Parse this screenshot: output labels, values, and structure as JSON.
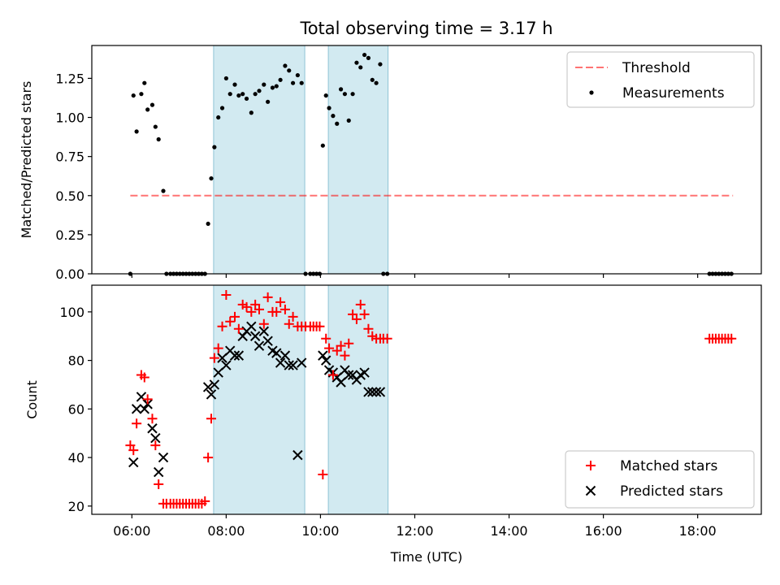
{
  "title": "Total observing time = 3.17 h",
  "colors": {
    "observing_span": "#add8e6",
    "threshold": "#ff0000",
    "measurements": "#000000",
    "matched": "#ff0000",
    "predicted": "#000000"
  },
  "chart_data": [
    {
      "type": "scatter",
      "panel": "top",
      "ylabel": "Matched/Predicted stars",
      "ylim": [
        0,
        1.46
      ],
      "yticks": [
        "0.00",
        "0.25",
        "0.50",
        "0.75",
        "1.00",
        "1.25"
      ],
      "xlim": [
        "05:09",
        "19:21"
      ],
      "legend": [
        "Threshold",
        "Measurements"
      ],
      "legend_position": "top-right",
      "observing_spans": [
        [
          "07:44",
          "09:40"
        ],
        [
          "10:10",
          "11:26"
        ]
      ],
      "threshold": {
        "name": "Threshold",
        "y": 0.5,
        "x": [
          "05:58",
          "18:45"
        ],
        "style": "dashed"
      },
      "series": [
        {
          "name": "Measurements",
          "x": [
            "05:58",
            "06:02",
            "06:06",
            "06:12",
            "06:16",
            "06:20",
            "06:26",
            "06:30",
            "06:34",
            "06:40",
            "06:44",
            "06:49",
            "06:53",
            "06:57",
            "07:01",
            "07:05",
            "07:09",
            "07:13",
            "07:17",
            "07:21",
            "07:25",
            "07:29",
            "07:33",
            "07:37",
            "07:41",
            "07:45",
            "07:50",
            "07:55",
            "08:00",
            "08:05",
            "08:11",
            "08:16",
            "08:21",
            "08:26",
            "08:32",
            "08:37",
            "08:42",
            "08:48",
            "08:53",
            "08:59",
            "09:04",
            "09:09",
            "09:15",
            "09:20",
            "09:25",
            "09:31",
            "09:36",
            "09:41",
            "09:47",
            "09:51",
            "09:55",
            "09:59",
            "10:03",
            "10:07",
            "10:11",
            "10:16",
            "10:21",
            "10:26",
            "10:31",
            "10:36",
            "10:41",
            "10:46",
            "10:51",
            "10:56",
            "11:01",
            "11:06",
            "11:11",
            "11:16",
            "11:20",
            "11:25",
            "18:15",
            "18:19",
            "18:23",
            "18:27",
            "18:31",
            "18:35",
            "18:39",
            "18:43"
          ],
          "y": [
            0.0,
            1.14,
            0.91,
            1.15,
            1.22,
            1.05,
            1.08,
            0.94,
            0.86,
            0.53,
            0.0,
            0.0,
            0.0,
            0.0,
            0.0,
            0.0,
            0.0,
            0.0,
            0.0,
            0.0,
            0.0,
            0.0,
            0.0,
            0.32,
            0.61,
            0.81,
            1.0,
            1.06,
            1.25,
            1.15,
            1.21,
            1.14,
            1.15,
            1.12,
            1.03,
            1.15,
            1.17,
            1.21,
            1.1,
            1.19,
            1.2,
            1.24,
            1.33,
            1.3,
            1.22,
            1.27,
            1.22,
            0.0,
            0.0,
            0.0,
            0.0,
            0.0,
            0.82,
            1.14,
            1.06,
            1.01,
            0.96,
            1.18,
            1.15,
            0.98,
            1.15,
            1.35,
            1.32,
            1.4,
            1.38,
            1.24,
            1.22,
            1.34,
            0.0,
            0.0,
            0.0,
            0.0,
            0.0,
            0.0,
            0.0,
            0.0,
            0.0,
            0.0
          ]
        }
      ]
    },
    {
      "type": "scatter",
      "panel": "bottom",
      "xlabel": "Time (UTC)",
      "ylabel": "Count",
      "ylim": [
        16.6,
        111.0
      ],
      "yticks": [
        "20",
        "40",
        "60",
        "80",
        "100"
      ],
      "xlim": [
        "05:09",
        "19:21"
      ],
      "xticks": [
        "06:00",
        "08:00",
        "10:00",
        "12:00",
        "14:00",
        "16:00",
        "18:00"
      ],
      "legend": [
        "Matched stars",
        "Predicted stars"
      ],
      "legend_position": "lower-right",
      "observing_spans": [
        [
          "07:44",
          "09:40"
        ],
        [
          "10:10",
          "11:26"
        ]
      ],
      "series": [
        {
          "name": "Matched stars",
          "marker": "+",
          "x": [
            "05:58",
            "06:02",
            "06:06",
            "06:12",
            "06:16",
            "06:20",
            "06:26",
            "06:30",
            "06:34",
            "06:40",
            "06:44",
            "06:49",
            "06:53",
            "06:57",
            "07:01",
            "07:05",
            "07:09",
            "07:13",
            "07:17",
            "07:21",
            "07:25",
            "07:29",
            "07:33",
            "07:37",
            "07:41",
            "07:45",
            "07:50",
            "07:55",
            "08:00",
            "08:05",
            "08:11",
            "08:16",
            "08:21",
            "08:26",
            "08:32",
            "08:37",
            "08:42",
            "08:48",
            "08:53",
            "08:59",
            "09:04",
            "09:09",
            "09:15",
            "09:20",
            "09:25",
            "09:31",
            "09:36",
            "09:41",
            "09:47",
            "09:51",
            "09:55",
            "09:59",
            "10:03",
            "10:07",
            "10:11",
            "10:16",
            "10:21",
            "10:26",
            "10:31",
            "10:36",
            "10:41",
            "10:46",
            "10:51",
            "10:56",
            "11:01",
            "11:06",
            "11:11",
            "11:16",
            "11:20",
            "11:25",
            "18:15",
            "18:19",
            "18:23",
            "18:27",
            "18:31",
            "18:35",
            "18:39",
            "18:43"
          ],
          "y": [
            45,
            43,
            54,
            74,
            73,
            64,
            56,
            45,
            29,
            21,
            21,
            21,
            21,
            21,
            21,
            21,
            21,
            21,
            21,
            21,
            21,
            21,
            22,
            40,
            56,
            81,
            85,
            94,
            107,
            96,
            98,
            93,
            103,
            102,
            100,
            103,
            101,
            95,
            106,
            100,
            100,
            104,
            101,
            95,
            98,
            94,
            94,
            94,
            94,
            94,
            94,
            94,
            33,
            89,
            85,
            74,
            84,
            86,
            82,
            87,
            99,
            97,
            103,
            99,
            93,
            90,
            89,
            89,
            89,
            89,
            89,
            89,
            89,
            89,
            89,
            89,
            89,
            89
          ]
        },
        {
          "name": "Predicted stars",
          "marker": "x",
          "x": [
            "06:02",
            "06:06",
            "06:12",
            "06:16",
            "06:20",
            "06:26",
            "06:30",
            "06:34",
            "06:40",
            "07:37",
            "07:41",
            "07:45",
            "07:50",
            "07:55",
            "08:00",
            "08:05",
            "08:11",
            "08:16",
            "08:21",
            "08:26",
            "08:32",
            "08:37",
            "08:42",
            "08:48",
            "08:53",
            "08:59",
            "09:04",
            "09:09",
            "09:15",
            "09:20",
            "09:25",
            "09:31",
            "09:36",
            "10:03",
            "10:07",
            "10:11",
            "10:16",
            "10:21",
            "10:26",
            "10:31",
            "10:36",
            "10:41",
            "10:46",
            "10:51",
            "10:56",
            "11:01",
            "11:06",
            "11:11",
            "11:16"
          ],
          "y": [
            38,
            60,
            65,
            60,
            62,
            52,
            48,
            34,
            40,
            69,
            66,
            70,
            75,
            81,
            78,
            84,
            82,
            82,
            90,
            92,
            94,
            90,
            86,
            92,
            88,
            84,
            83,
            79,
            82,
            78,
            78,
            41,
            79,
            82,
            80,
            76,
            75,
            73,
            71,
            76,
            74,
            74,
            72,
            74,
            75,
            67,
            67,
            67,
            67
          ]
        }
      ]
    }
  ]
}
